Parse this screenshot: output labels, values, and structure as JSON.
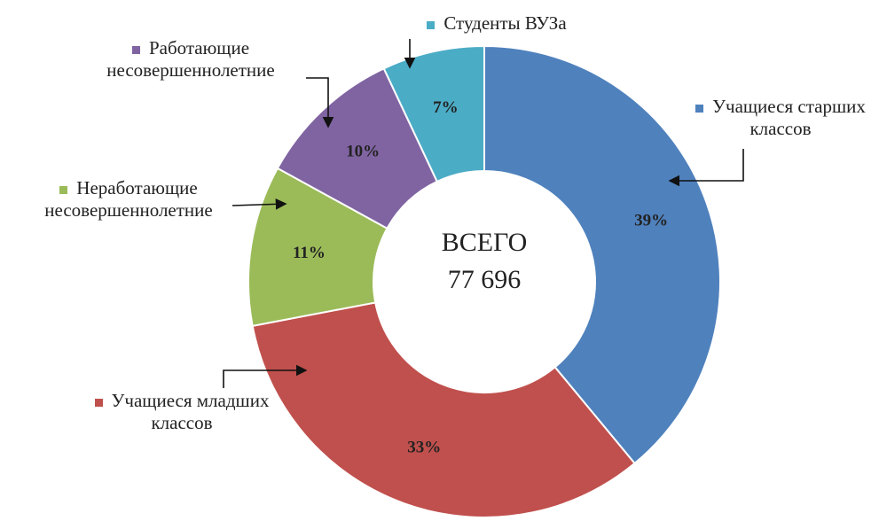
{
  "chart_data": {
    "type": "donut",
    "center_title": "ВСЕГО",
    "center_total": {
      "value": 77696,
      "label": "77 696"
    },
    "series": [
      {
        "name": "Учащиеся старших классов",
        "color": "#4f81bd",
        "values": [
          39
        ],
        "value_labels": [
          "39%"
        ]
      },
      {
        "name": "Учащиеся младших классов",
        "color": "#c0504d",
        "values": [
          33
        ],
        "value_labels": [
          "33%"
        ]
      },
      {
        "name": "Неработающие несовершеннолетние",
        "color": "#9bbb59",
        "values": [
          11
        ],
        "value_labels": [
          "11%"
        ]
      },
      {
        "name": "Работающие несовершеннолетние",
        "color": "#8064a2",
        "values": [
          10
        ],
        "value_labels": [
          "10%"
        ]
      },
      {
        "name": "Студенты ВУЗа",
        "color": "#4bacc6",
        "values": [
          7
        ],
        "value_labels": [
          "7%"
        ]
      }
    ]
  }
}
